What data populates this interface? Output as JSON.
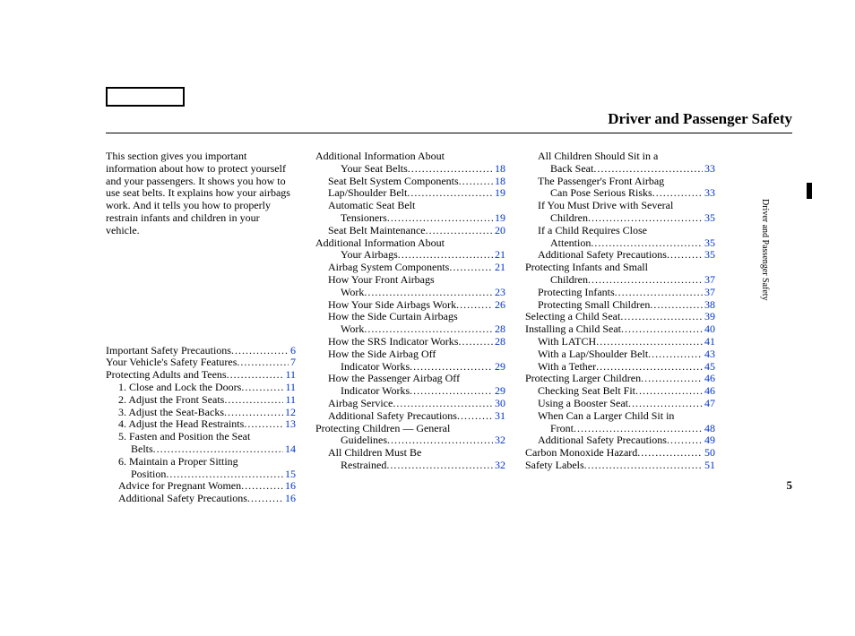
{
  "title": "Driver and Passenger Safety",
  "side_tab": "Driver and Passenger Safety",
  "page_number": "5",
  "intro": "This section gives you important information about how to protect yourself and your passengers. It shows you how to use seat belts. It explains how your airbags work. And it tells you how to properly restrain infants and children in your vehicle.",
  "col1": [
    {
      "label": "Important Safety Precautions",
      "page": "6",
      "indent": 0
    },
    {
      "label": "Your Vehicle's Safety Features",
      "page": "7",
      "indent": 0
    },
    {
      "label": "Protecting Adults and Teens",
      "page": "11",
      "indent": 0
    },
    {
      "label": "1. Close and Lock the Doors",
      "page": "11",
      "indent": 1
    },
    {
      "label": "2. Adjust the Front Seats",
      "page": "11",
      "indent": 1
    },
    {
      "label": "3. Adjust the Seat-Backs",
      "page": "12",
      "indent": 1
    },
    {
      "label": "4. Adjust the Head Restraints",
      "page": "13",
      "indent": 1
    },
    {
      "label": "5. Fasten and Position the Seat",
      "cont": "Belts",
      "page": "14",
      "indent": 1,
      "contIndent": 2
    },
    {
      "label": "6. Maintain a Proper Sitting",
      "cont": "Position",
      "page": "15",
      "indent": 1,
      "contIndent": 2
    },
    {
      "label": "Advice for Pregnant Women",
      "page": "16",
      "indent": 1
    },
    {
      "label": "Additional Safety Precautions",
      "page": "16",
      "indent": 1
    }
  ],
  "col2": [
    {
      "label": "Additional Information About",
      "cont": "Your Seat Belts",
      "page": "18",
      "indent": 0,
      "contIndent": 2
    },
    {
      "label": "Seat Belt System Components",
      "page": "18",
      "indent": 1
    },
    {
      "label": "Lap/Shoulder Belt",
      "page": "19",
      "indent": 1
    },
    {
      "label": "Automatic Seat Belt",
      "cont": "Tensioners",
      "page": "19",
      "indent": 1,
      "contIndent": 2
    },
    {
      "label": "Seat Belt Maintenance",
      "page": "20",
      "indent": 1
    },
    {
      "label": "Additional Information About",
      "cont": "Your Airbags",
      "page": "21",
      "indent": 0,
      "contIndent": 2
    },
    {
      "label": "Airbag System Components",
      "page": "21",
      "indent": 1
    },
    {
      "label": "How Your Front Airbags",
      "cont": "Work",
      "page": "23",
      "indent": 1,
      "contIndent": 2
    },
    {
      "label": "How Your Side Airbags Work",
      "page": "26",
      "indent": 1
    },
    {
      "label": "How the Side Curtain Airbags",
      "cont": "Work",
      "page": "28",
      "indent": 1,
      "contIndent": 2
    },
    {
      "label": "How the SRS Indicator Works",
      "page": "28",
      "indent": 1
    },
    {
      "label": "How the Side Airbag Off",
      "cont": "Indicator Works",
      "page": "29",
      "indent": 1,
      "contIndent": 2
    },
    {
      "label": "How the Passenger Airbag Off",
      "cont": "Indicator Works",
      "page": "29",
      "indent": 1,
      "contIndent": 2
    },
    {
      "label": "Airbag Service",
      "page": "30",
      "indent": 1
    },
    {
      "label": "Additional Safety Precautions",
      "page": "31",
      "indent": 1
    },
    {
      "label": "Protecting Children — General",
      "cont": "Guidelines",
      "page": "32",
      "indent": 0,
      "contIndent": 2
    },
    {
      "label": "All Children Must Be",
      "cont": "Restrained",
      "page": "32",
      "indent": 1,
      "contIndent": 2
    }
  ],
  "col3": [
    {
      "label": "All Children Should Sit in a",
      "cont": "Back Seat",
      "page": "33",
      "indent": 1,
      "contIndent": 2
    },
    {
      "label": "The Passenger's Front Airbag",
      "cont": "Can Pose Serious Risks",
      "page": "33",
      "indent": 1,
      "contIndent": 2
    },
    {
      "label": "If You Must Drive with Several",
      "cont": "Children",
      "page": "35",
      "indent": 1,
      "contIndent": 2
    },
    {
      "label": "If a Child Requires Close",
      "cont": "Attention",
      "page": "35",
      "indent": 1,
      "contIndent": 2
    },
    {
      "label": "Additional Safety Precautions",
      "page": "35",
      "indent": 1
    },
    {
      "label": "Protecting Infants and Small",
      "cont": "Children",
      "page": "37",
      "indent": 0,
      "contIndent": 2
    },
    {
      "label": "Protecting Infants",
      "page": "37",
      "indent": 1
    },
    {
      "label": "Protecting Small Children",
      "page": "38",
      "indent": 1
    },
    {
      "label": "Selecting a Child Seat",
      "page": "39",
      "indent": 0
    },
    {
      "label": "Installing a Child Seat",
      "page": "40",
      "indent": 0
    },
    {
      "label": "With LATCH",
      "page": "41",
      "indent": 1
    },
    {
      "label": "With a Lap/Shoulder Belt",
      "page": "43",
      "indent": 1
    },
    {
      "label": "With a Tether",
      "page": "45",
      "indent": 1
    },
    {
      "label": "Protecting Larger Children",
      "page": "46",
      "indent": 0
    },
    {
      "label": "Checking Seat Belt Fit",
      "page": "46",
      "indent": 1
    },
    {
      "label": "Using a Booster Seat",
      "page": "47",
      "indent": 1
    },
    {
      "label": "When Can a Larger Child Sit in",
      "cont": "Front",
      "page": "48",
      "indent": 1,
      "contIndent": 2
    },
    {
      "label": "Additional Safety Precautions",
      "page": "49",
      "indent": 1
    },
    {
      "label": "Carbon Monoxide Hazard",
      "page": "50",
      "indent": 0
    },
    {
      "label": "Safety Labels",
      "page": "51",
      "indent": 0
    }
  ],
  "link_color": "#0033cc",
  "dots": "......................................................"
}
